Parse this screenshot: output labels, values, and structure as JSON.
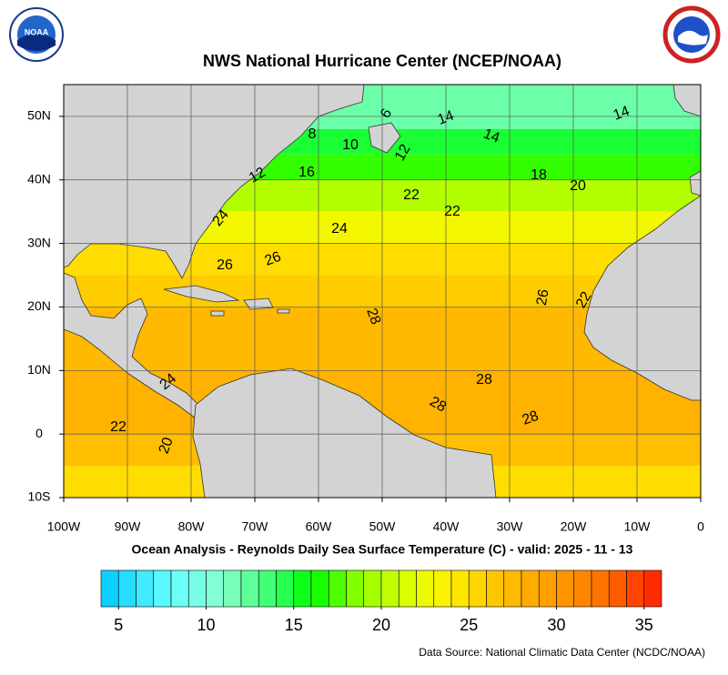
{
  "header": {
    "title": "NWS National Hurricane Center (NCEP/NOAA)",
    "logo_text": "NOAA"
  },
  "map": {
    "xlim": [
      -100,
      0
    ],
    "ylim": [
      -10,
      55
    ],
    "xticks": [
      {
        "value": -100,
        "label": "100W"
      },
      {
        "value": -90,
        "label": "90W"
      },
      {
        "value": -80,
        "label": "80W"
      },
      {
        "value": -70,
        "label": "70W"
      },
      {
        "value": -60,
        "label": "60W"
      },
      {
        "value": -50,
        "label": "50W"
      },
      {
        "value": -40,
        "label": "40W"
      },
      {
        "value": -30,
        "label": "30W"
      },
      {
        "value": -20,
        "label": "20W"
      },
      {
        "value": -10,
        "label": "10W"
      },
      0
    ],
    "yticks": [
      {
        "value": -10,
        "label": "10S"
      },
      0,
      {
        "value": 10,
        "label": "10N"
      },
      {
        "value": 20,
        "label": "20N"
      },
      {
        "value": 30,
        "label": "30N"
      },
      {
        "value": 40,
        "label": "40N"
      },
      {
        "value": 50,
        "label": "50N"
      }
    ],
    "grid": true,
    "land_color": "#d3d3d3",
    "sst_bands": [
      {
        "lat": [
          48,
          55
        ],
        "sst": 12
      },
      {
        "lat": [
          44,
          48
        ],
        "sst": 15
      },
      {
        "lat": [
          40,
          44
        ],
        "sst": 17
      },
      {
        "lat": [
          35,
          40
        ],
        "sst": 20
      },
      {
        "lat": [
          30,
          35
        ],
        "sst": 23
      },
      {
        "lat": [
          25,
          30
        ],
        "sst": 25
      },
      {
        "lat": [
          20,
          25
        ],
        "sst": 26
      },
      {
        "lat": [
          10,
          20
        ],
        "sst": 27.5
      },
      {
        "lat": [
          0,
          10
        ],
        "sst": 28
      },
      {
        "lat": [
          -5,
          0
        ],
        "sst": 27
      },
      {
        "lat": [
          -10,
          -5
        ],
        "sst": 25
      }
    ],
    "contour_labels": [
      6,
      8,
      10,
      12,
      12,
      14,
      14,
      14,
      16,
      18,
      20,
      22,
      22,
      24,
      24,
      26,
      26,
      26,
      22,
      28,
      28,
      28,
      28,
      24,
      22,
      20
    ]
  },
  "caption": "Ocean Analysis - Reynolds Daily Sea Surface Temperature (C) - valid: 2025 - 11 - 13",
  "colorbar": {
    "lim": [
      4,
      36
    ],
    "ticks": [
      5,
      10,
      15,
      20,
      25,
      30,
      35
    ],
    "color_stops": [
      {
        "value": 4,
        "color": "#00c8ff"
      },
      {
        "value": 8,
        "color": "#66ffff"
      },
      {
        "value": 11,
        "color": "#88ffcc"
      },
      {
        "value": 14,
        "color": "#33ff66"
      },
      {
        "value": 16,
        "color": "#00ff00"
      },
      {
        "value": 19,
        "color": "#99ff00"
      },
      {
        "value": 22,
        "color": "#e6ff00"
      },
      {
        "value": 24,
        "color": "#ffee00"
      },
      {
        "value": 26,
        "color": "#ffcc00"
      },
      {
        "value": 29,
        "color": "#ffa500"
      },
      {
        "value": 32,
        "color": "#ff8000"
      },
      {
        "value": 36,
        "color": "#ff2000"
      }
    ]
  },
  "source": "Data Source: National Climatic Data Center (NCDC/NOAA)"
}
